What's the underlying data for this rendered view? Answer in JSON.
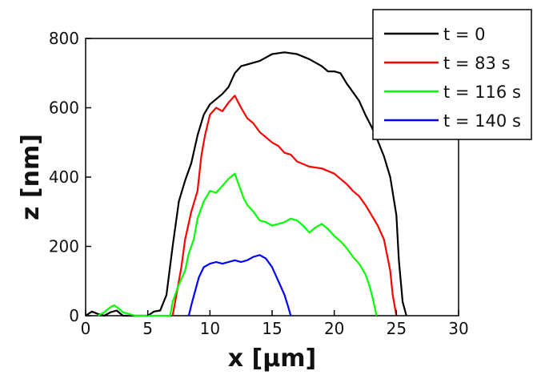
{
  "chart_data": {
    "type": "line",
    "xlabel": "x [μm]",
    "ylabel": "z [nm]",
    "xlim": [
      0,
      30
    ],
    "ylim": [
      0,
      800
    ],
    "xticks": [
      0,
      5,
      10,
      15,
      20,
      25,
      30
    ],
    "yticks": [
      0,
      200,
      400,
      600,
      800
    ],
    "grid": false,
    "legend_position": "top-right",
    "series": [
      {
        "name": "t = 0",
        "color": "#000000",
        "points": [
          [
            0,
            0
          ],
          [
            0.5,
            12
          ],
          [
            1,
            5
          ],
          [
            1.5,
            0
          ],
          [
            2,
            10
          ],
          [
            2.5,
            15
          ],
          [
            3,
            0
          ],
          [
            5,
            0
          ],
          [
            5.5,
            12
          ],
          [
            6,
            15
          ],
          [
            6.5,
            60
          ],
          [
            7,
            200
          ],
          [
            7.5,
            330
          ],
          [
            8,
            390
          ],
          [
            8.5,
            440
          ],
          [
            9,
            520
          ],
          [
            9.5,
            580
          ],
          [
            10,
            610
          ],
          [
            10.5,
            625
          ],
          [
            11,
            640
          ],
          [
            11.5,
            660
          ],
          [
            12,
            700
          ],
          [
            12.5,
            720
          ],
          [
            13,
            725
          ],
          [
            14,
            735
          ],
          [
            14.5,
            745
          ],
          [
            15,
            755
          ],
          [
            16,
            760
          ],
          [
            17,
            755
          ],
          [
            18,
            740
          ],
          [
            19,
            720
          ],
          [
            19.5,
            705
          ],
          [
            20,
            705
          ],
          [
            20.5,
            700
          ],
          [
            21,
            670
          ],
          [
            21.5,
            645
          ],
          [
            22,
            620
          ],
          [
            22.5,
            580
          ],
          [
            23,
            545
          ],
          [
            23.5,
            505
          ],
          [
            24,
            460
          ],
          [
            24.5,
            400
          ],
          [
            25,
            290
          ],
          [
            25.2,
            160
          ],
          [
            25.5,
            40
          ],
          [
            25.8,
            0
          ]
        ]
      },
      {
        "name": "t = 83 s",
        "color": "#ff0000",
        "points": [
          [
            7,
            0
          ],
          [
            7.3,
            60
          ],
          [
            7.7,
            140
          ],
          [
            8,
            220
          ],
          [
            8.5,
            300
          ],
          [
            9,
            360
          ],
          [
            9.3,
            460
          ],
          [
            9.6,
            520
          ],
          [
            10,
            580
          ],
          [
            10.5,
            600
          ],
          [
            11,
            590
          ],
          [
            11.5,
            615
          ],
          [
            12,
            635
          ],
          [
            12.5,
            600
          ],
          [
            13,
            570
          ],
          [
            13.5,
            555
          ],
          [
            14,
            530
          ],
          [
            15,
            500
          ],
          [
            15.5,
            490
          ],
          [
            16,
            470
          ],
          [
            16.5,
            465
          ],
          [
            17,
            445
          ],
          [
            18,
            430
          ],
          [
            19,
            425
          ],
          [
            20,
            410
          ],
          [
            20.5,
            395
          ],
          [
            21,
            380
          ],
          [
            21.5,
            360
          ],
          [
            22,
            345
          ],
          [
            22.5,
            320
          ],
          [
            23,
            290
          ],
          [
            23.5,
            260
          ],
          [
            24,
            220
          ],
          [
            24.5,
            130
          ],
          [
            24.7,
            60
          ],
          [
            25,
            0
          ]
        ]
      },
      {
        "name": "t = 116 s",
        "color": "#00ff00",
        "points": [
          [
            1,
            0
          ],
          [
            1.5,
            10
          ],
          [
            2,
            25
          ],
          [
            2.3,
            30
          ],
          [
            2.7,
            20
          ],
          [
            3,
            10
          ],
          [
            3.5,
            5
          ],
          [
            4,
            0
          ],
          [
            6.8,
            0
          ],
          [
            7,
            40
          ],
          [
            7.5,
            90
          ],
          [
            8,
            130
          ],
          [
            8.3,
            180
          ],
          [
            8.7,
            220
          ],
          [
            9,
            280
          ],
          [
            9.5,
            330
          ],
          [
            10,
            360
          ],
          [
            10.5,
            355
          ],
          [
            11,
            375
          ],
          [
            11.5,
            395
          ],
          [
            12,
            410
          ],
          [
            12.3,
            380
          ],
          [
            12.7,
            340
          ],
          [
            13,
            320
          ],
          [
            13.5,
            300
          ],
          [
            14,
            275
          ],
          [
            14.5,
            270
          ],
          [
            15,
            260
          ],
          [
            15.5,
            265
          ],
          [
            16,
            270
          ],
          [
            16.5,
            280
          ],
          [
            17,
            275
          ],
          [
            17.5,
            260
          ],
          [
            18,
            240
          ],
          [
            18.5,
            255
          ],
          [
            19,
            265
          ],
          [
            19.5,
            250
          ],
          [
            20,
            230
          ],
          [
            20.5,
            215
          ],
          [
            21,
            195
          ],
          [
            21.5,
            170
          ],
          [
            22,
            150
          ],
          [
            22.5,
            120
          ],
          [
            22.8,
            90
          ],
          [
            23.1,
            50
          ],
          [
            23.4,
            0
          ]
        ]
      },
      {
        "name": "t = 140 s",
        "color": "#0000ff",
        "points": [
          [
            8.3,
            0
          ],
          [
            8.5,
            30
          ],
          [
            8.8,
            70
          ],
          [
            9.1,
            110
          ],
          [
            9.5,
            140
          ],
          [
            10,
            150
          ],
          [
            10.5,
            155
          ],
          [
            11,
            150
          ],
          [
            11.5,
            155
          ],
          [
            12,
            160
          ],
          [
            12.5,
            155
          ],
          [
            13,
            160
          ],
          [
            13.5,
            170
          ],
          [
            14,
            175
          ],
          [
            14.5,
            165
          ],
          [
            15,
            140
          ],
          [
            15.5,
            100
          ],
          [
            16,
            60
          ],
          [
            16.3,
            25
          ],
          [
            16.5,
            0
          ]
        ]
      }
    ]
  }
}
